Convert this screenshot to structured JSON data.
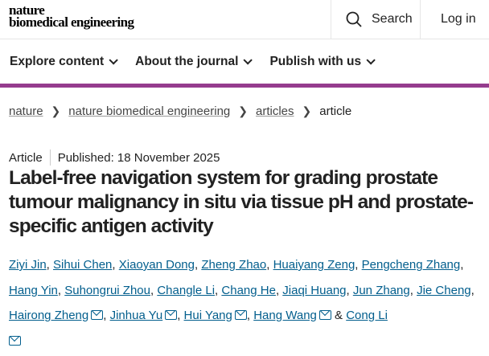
{
  "header": {
    "logo_line1": "nature",
    "logo_line2": "biomedical engineering",
    "search_label": "Search",
    "login_label": "Log in"
  },
  "nav": {
    "items": [
      "Explore content",
      "About the journal",
      "Publish with us"
    ]
  },
  "colors": {
    "accent_bar": "#953c8e",
    "link": "#025e8d"
  },
  "breadcrumb": [
    "nature",
    "nature biomedical engineering",
    "articles",
    "article"
  ],
  "article": {
    "type": "Article",
    "published": "Published: 18 November 2025",
    "title": "Label-free navigation system for grading prostate tumour malignancy in situ via tissue pH and prostate-specific antigen activity",
    "authors": [
      {
        "name": "Ziyi Jin",
        "email": false
      },
      {
        "name": "Sihui Chen",
        "email": false
      },
      {
        "name": "Xiaoyan Dong",
        "email": false
      },
      {
        "name": "Zheng Zhao",
        "email": false
      },
      {
        "name": "Huaiyang Zeng",
        "email": false
      },
      {
        "name": "Pengcheng Zhang",
        "email": false
      },
      {
        "name": "Hang Yin",
        "email": false
      },
      {
        "name": "Suhongrui Zhou",
        "email": false
      },
      {
        "name": "Changle Li",
        "email": false
      },
      {
        "name": "Chang He",
        "email": false
      },
      {
        "name": "Jiaqi Huang",
        "email": false
      },
      {
        "name": "Jun Zhang",
        "email": false
      },
      {
        "name": "Jie Cheng",
        "email": false
      },
      {
        "name": "Hairong Zheng",
        "email": true
      },
      {
        "name": "Jinhua Yu",
        "email": true
      },
      {
        "name": "Hui Yang",
        "email": true
      },
      {
        "name": "Hang Wang",
        "email": true
      },
      {
        "name": "Cong Li",
        "email": true
      }
    ],
    "author_conjunction": "&"
  }
}
